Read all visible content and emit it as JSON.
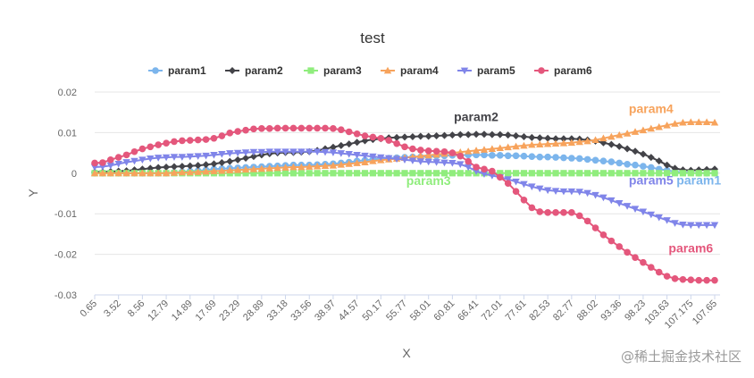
{
  "chart_data": {
    "type": "line",
    "title": "test",
    "xlabel": "X",
    "ylabel": "Y",
    "ylim": [
      -0.03,
      0.02
    ],
    "yticks": [
      "0.02",
      "0.01",
      "0",
      "-0.01",
      "-0.02",
      "-0.03"
    ],
    "ytick_values": [
      0.02,
      0.01,
      0,
      -0.01,
      -0.02,
      -0.03
    ],
    "x": [
      "0.65",
      "1.5",
      "2.1",
      "3.52",
      "4.9",
      "6.8",
      "8.56",
      "9.8",
      "11.2",
      "12.79",
      "13.5",
      "14.2",
      "14.89",
      "15.6",
      "16.4",
      "17.69",
      "19.2",
      "21.3",
      "23.29",
      "25.1",
      "27.0",
      "28.89",
      "30.3",
      "31.7",
      "33.18",
      "33.3",
      "33.45",
      "33.56",
      "35.2",
      "37.1",
      "38.97",
      "40.8",
      "42.6",
      "44.57",
      "46.3",
      "48.2",
      "50.17",
      "52.1",
      "53.9",
      "55.77",
      "56.5",
      "57.2",
      "58.01",
      "58.9",
      "59.8",
      "60.81",
      "62.6",
      "64.5",
      "66.41",
      "68.3",
      "70.1",
      "72.01",
      "74.0",
      "75.8",
      "77.61",
      "79.3",
      "80.9",
      "82.53",
      "82.6",
      "82.7",
      "82.77",
      "84.5",
      "86.2",
      "88.02",
      "89.8",
      "91.6",
      "93.36",
      "95.0",
      "96.6",
      "98.23",
      "100.1",
      "101.9",
      "103.63",
      "104.9",
      "106.0",
      "107.175",
      "107.3",
      "107.5",
      "107.65"
    ],
    "xticks": [
      "0.65",
      "3.52",
      "8.56",
      "12.79",
      "14.89",
      "17.69",
      "23.29",
      "28.89",
      "33.18",
      "33.56",
      "38.97",
      "44.57",
      "50.17",
      "55.77",
      "58.01",
      "60.81",
      "66.41",
      "72.01",
      "77.61",
      "82.53",
      "82.77",
      "88.02",
      "93.36",
      "98.23",
      "103.63",
      "107.175",
      "107.65"
    ],
    "xtick_indices": [
      0,
      3,
      6,
      9,
      12,
      15,
      18,
      21,
      24,
      27,
      30,
      33,
      36,
      39,
      42,
      45,
      48,
      51,
      54,
      57,
      60,
      63,
      66,
      69,
      72,
      75,
      78
    ],
    "series": [
      {
        "name": "param1",
        "color": "#7cb5ec",
        "marker": "circle",
        "label_index": 76,
        "label_value": -0.0028,
        "values": [
          0,
          0,
          0,
          0,
          0,
          0,
          0,
          0,
          0,
          0,
          0.0002,
          0.0003,
          0.0005,
          0.0006,
          0.0008,
          0.001,
          0.0011,
          0.0012,
          0.0013,
          0.0014,
          0.0015,
          0.0016,
          0.0017,
          0.0018,
          0.0019,
          0.002,
          0.002,
          0.002,
          0.0021,
          0.0022,
          0.0023,
          0.0025,
          0.0027,
          0.003,
          0.0032,
          0.0034,
          0.0036,
          0.0037,
          0.0038,
          0.0039,
          0.004,
          0.004,
          0.0041,
          0.0042,
          0.0043,
          0.0044,
          0.0044,
          0.0045,
          0.0045,
          0.0045,
          0.0044,
          0.0044,
          0.0043,
          0.0043,
          0.0042,
          0.0041,
          0.004,
          0.004,
          0.0039,
          0.0038,
          0.0037,
          0.0036,
          0.0034,
          0.0032,
          0.003,
          0.0028,
          0.0025,
          0.0022,
          0.002,
          0.0017,
          0.0014,
          0.001,
          0.0007,
          0.0004,
          0.0002,
          0.0001,
          0,
          0,
          0
        ]
      },
      {
        "name": "param2",
        "color": "#434348",
        "marker": "diamond",
        "label_index": 48,
        "label_value": 0.0128,
        "values": [
          0.0003,
          0.0003,
          0.0004,
          0.0005,
          0.0006,
          0.0008,
          0.001,
          0.0012,
          0.0014,
          0.0015,
          0.0016,
          0.0017,
          0.0018,
          0.0019,
          0.0021,
          0.0023,
          0.0026,
          0.0029,
          0.0033,
          0.0037,
          0.0041,
          0.0045,
          0.0048,
          0.005,
          0.0051,
          0.0051,
          0.0052,
          0.0053,
          0.0056,
          0.006,
          0.0064,
          0.0068,
          0.0072,
          0.0076,
          0.008,
          0.0083,
          0.0085,
          0.0087,
          0.0088,
          0.0089,
          0.009,
          0.0091,
          0.0091,
          0.0092,
          0.0093,
          0.0094,
          0.0095,
          0.0095,
          0.0096,
          0.0096,
          0.0095,
          0.0095,
          0.0094,
          0.0092,
          0.009,
          0.0088,
          0.0087,
          0.0086,
          0.0085,
          0.0085,
          0.0085,
          0.0084,
          0.0082,
          0.0079,
          0.0075,
          0.0071,
          0.0066,
          0.006,
          0.0054,
          0.0047,
          0.0039,
          0.003,
          0.002,
          0.0012,
          0.0008,
          0.0007,
          0.0008,
          0.0009,
          0.001
        ]
      },
      {
        "name": "param3",
        "color": "#90ed7d",
        "marker": "square",
        "label_index": 42,
        "label_value": -0.0029,
        "values": [
          0,
          0,
          0,
          0,
          0,
          0,
          0,
          0,
          0,
          0,
          0,
          0,
          0,
          0,
          0,
          0,
          0,
          0,
          0,
          0,
          0,
          0,
          0,
          0,
          0,
          0,
          0,
          0,
          0,
          0,
          0,
          0,
          0,
          0,
          0,
          0,
          0,
          0,
          0,
          0,
          0,
          0,
          0,
          0,
          0,
          0,
          0,
          0,
          0,
          0,
          0,
          0,
          0,
          0,
          0,
          0,
          0,
          0,
          0,
          0,
          0,
          0,
          0,
          0,
          0,
          0,
          0,
          0,
          0,
          0,
          0,
          0,
          0,
          0,
          0,
          0,
          0,
          0,
          0
        ]
      },
      {
        "name": "param4",
        "color": "#f7a35c",
        "marker": "triangle",
        "label_index": 70,
        "label_value": 0.0148,
        "values": [
          0,
          0,
          0,
          0,
          0,
          0,
          0,
          0,
          0,
          0,
          0.0001,
          0.0002,
          0.0002,
          0.0003,
          0.0004,
          0.0005,
          0.0006,
          0.0007,
          0.0008,
          0.0009,
          0.001,
          0.0011,
          0.0012,
          0.0013,
          0.0014,
          0.0015,
          0.0015,
          0.0016,
          0.0017,
          0.0018,
          0.0019,
          0.0021,
          0.0023,
          0.0025,
          0.0027,
          0.003,
          0.0032,
          0.0034,
          0.0036,
          0.0038,
          0.004,
          0.0042,
          0.0044,
          0.0046,
          0.0048,
          0.005,
          0.0052,
          0.0054,
          0.0056,
          0.0058,
          0.006,
          0.0062,
          0.0064,
          0.0066,
          0.0068,
          0.007,
          0.0071,
          0.0072,
          0.0073,
          0.0074,
          0.0075,
          0.0077,
          0.0079,
          0.0082,
          0.0086,
          0.009,
          0.0094,
          0.0098,
          0.0102,
          0.0106,
          0.011,
          0.0114,
          0.0118,
          0.0122,
          0.0125,
          0.0126,
          0.0126,
          0.0126,
          0.0125
        ]
      },
      {
        "name": "param5",
        "color": "#8085e9",
        "marker": "triangle-down",
        "label_index": 70,
        "label_value": -0.0028,
        "values": [
          0.0015,
          0.0016,
          0.0019,
          0.0023,
          0.0027,
          0.003,
          0.0033,
          0.0036,
          0.0038,
          0.0039,
          0.004,
          0.004,
          0.0041,
          0.0042,
          0.0043,
          0.0045,
          0.0047,
          0.0049,
          0.005,
          0.0051,
          0.0052,
          0.0052,
          0.0053,
          0.0053,
          0.0053,
          0.0053,
          0.0053,
          0.0053,
          0.0053,
          0.0052,
          0.0051,
          0.0049,
          0.0047,
          0.0045,
          0.0043,
          0.0041,
          0.0039,
          0.0037,
          0.0035,
          0.0033,
          0.0031,
          0.0029,
          0.0028,
          0.0027,
          0.0026,
          0.0025,
          0.0022,
          0.0015,
          0.0005,
          -0.0002,
          -0.0006,
          -0.001,
          -0.0015,
          -0.0021,
          -0.0027,
          -0.0033,
          -0.0038,
          -0.0042,
          -0.0044,
          -0.0045,
          -0.0045,
          -0.0046,
          -0.0049,
          -0.0054,
          -0.006,
          -0.0067,
          -0.0074,
          -0.0081,
          -0.0088,
          -0.0095,
          -0.0102,
          -0.0109,
          -0.0116,
          -0.0123,
          -0.0127,
          -0.0128,
          -0.0128,
          -0.0128,
          -0.0128
        ]
      },
      {
        "name": "param6",
        "color": "#e4577c",
        "marker": "circle",
        "label_index": 75,
        "label_value": -0.0195,
        "values": [
          0.0025,
          0.0026,
          0.0033,
          0.0039,
          0.0045,
          0.0053,
          0.006,
          0.0065,
          0.007,
          0.0074,
          0.0078,
          0.008,
          0.0081,
          0.0082,
          0.0083,
          0.0086,
          0.0092,
          0.0099,
          0.0103,
          0.0106,
          0.0109,
          0.011,
          0.011,
          0.0111,
          0.0111,
          0.0111,
          0.0111,
          0.0111,
          0.0111,
          0.0111,
          0.011,
          0.0107,
          0.0102,
          0.0097,
          0.0092,
          0.0089,
          0.0086,
          0.0081,
          0.0073,
          0.0065,
          0.006,
          0.0057,
          0.0055,
          0.0054,
          0.0053,
          0.005,
          0.0042,
          0.0029,
          0.0015,
          0.001,
          0.0005,
          -0.001,
          -0.0025,
          -0.0045,
          -0.0066,
          -0.0085,
          -0.0095,
          -0.0097,
          -0.0097,
          -0.0097,
          -0.0097,
          -0.0105,
          -0.0118,
          -0.0135,
          -0.0152,
          -0.0167,
          -0.0181,
          -0.0195,
          -0.0208,
          -0.022,
          -0.0232,
          -0.0244,
          -0.0254,
          -0.026,
          -0.0262,
          -0.0263,
          -0.0264,
          -0.0264,
          -0.0264
        ]
      }
    ]
  },
  "watermark": "@稀土掘金技术社区"
}
